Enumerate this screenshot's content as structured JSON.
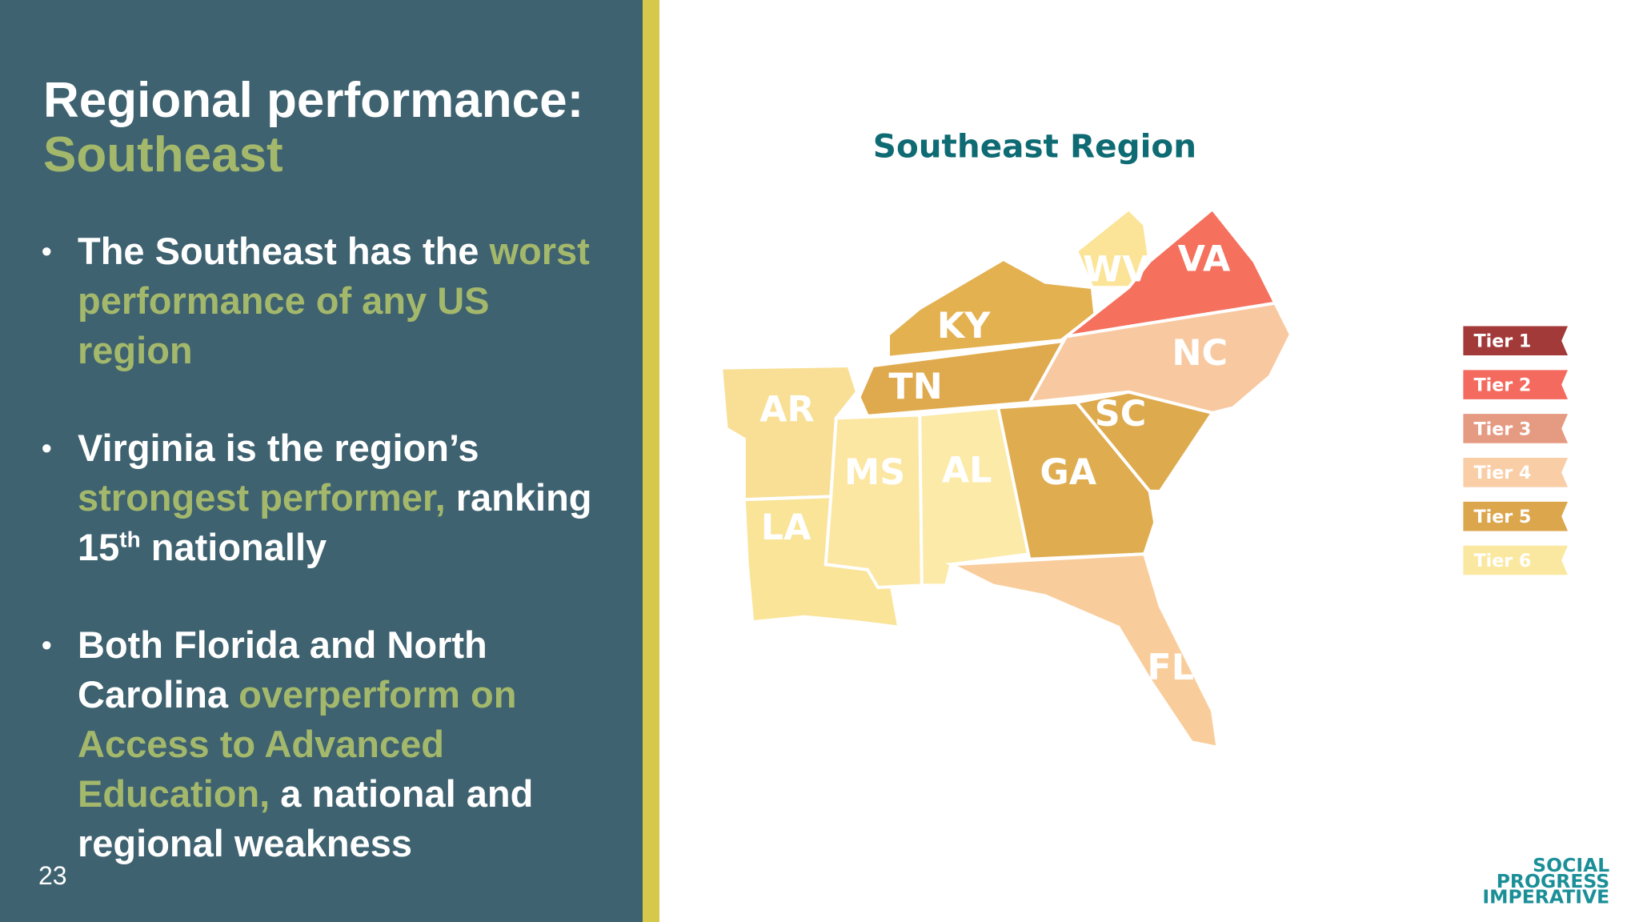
{
  "slide": {
    "title": "Regional performance:",
    "subtitle": "Southeast",
    "bullets": [
      [
        "The Southeast has the ",
        "worst performance of any US region"
      ],
      [
        "Virginia is the region’s ",
        "strongest performer,",
        " ranking 15",
        "th",
        " nationally"
      ],
      [
        "Both Florida and North Carolina ",
        "overperform on Access to Advanced Education,",
        " a national and regional weakness"
      ]
    ],
    "page_number": "23"
  },
  "map": {
    "title": "Southeast Region",
    "states": [
      "WV",
      "VA",
      "KY",
      "NC",
      "TN",
      "AR",
      "SC",
      "MS",
      "AL",
      "GA",
      "LA",
      "FL"
    ],
    "legend": [
      "Tier 1",
      "Tier 2",
      "Tier 3",
      "Tier 4",
      "Tier 5",
      "Tier 6"
    ]
  },
  "logo": [
    "SOCIAL",
    "PROGRESS",
    "IMPERATIVE"
  ]
}
